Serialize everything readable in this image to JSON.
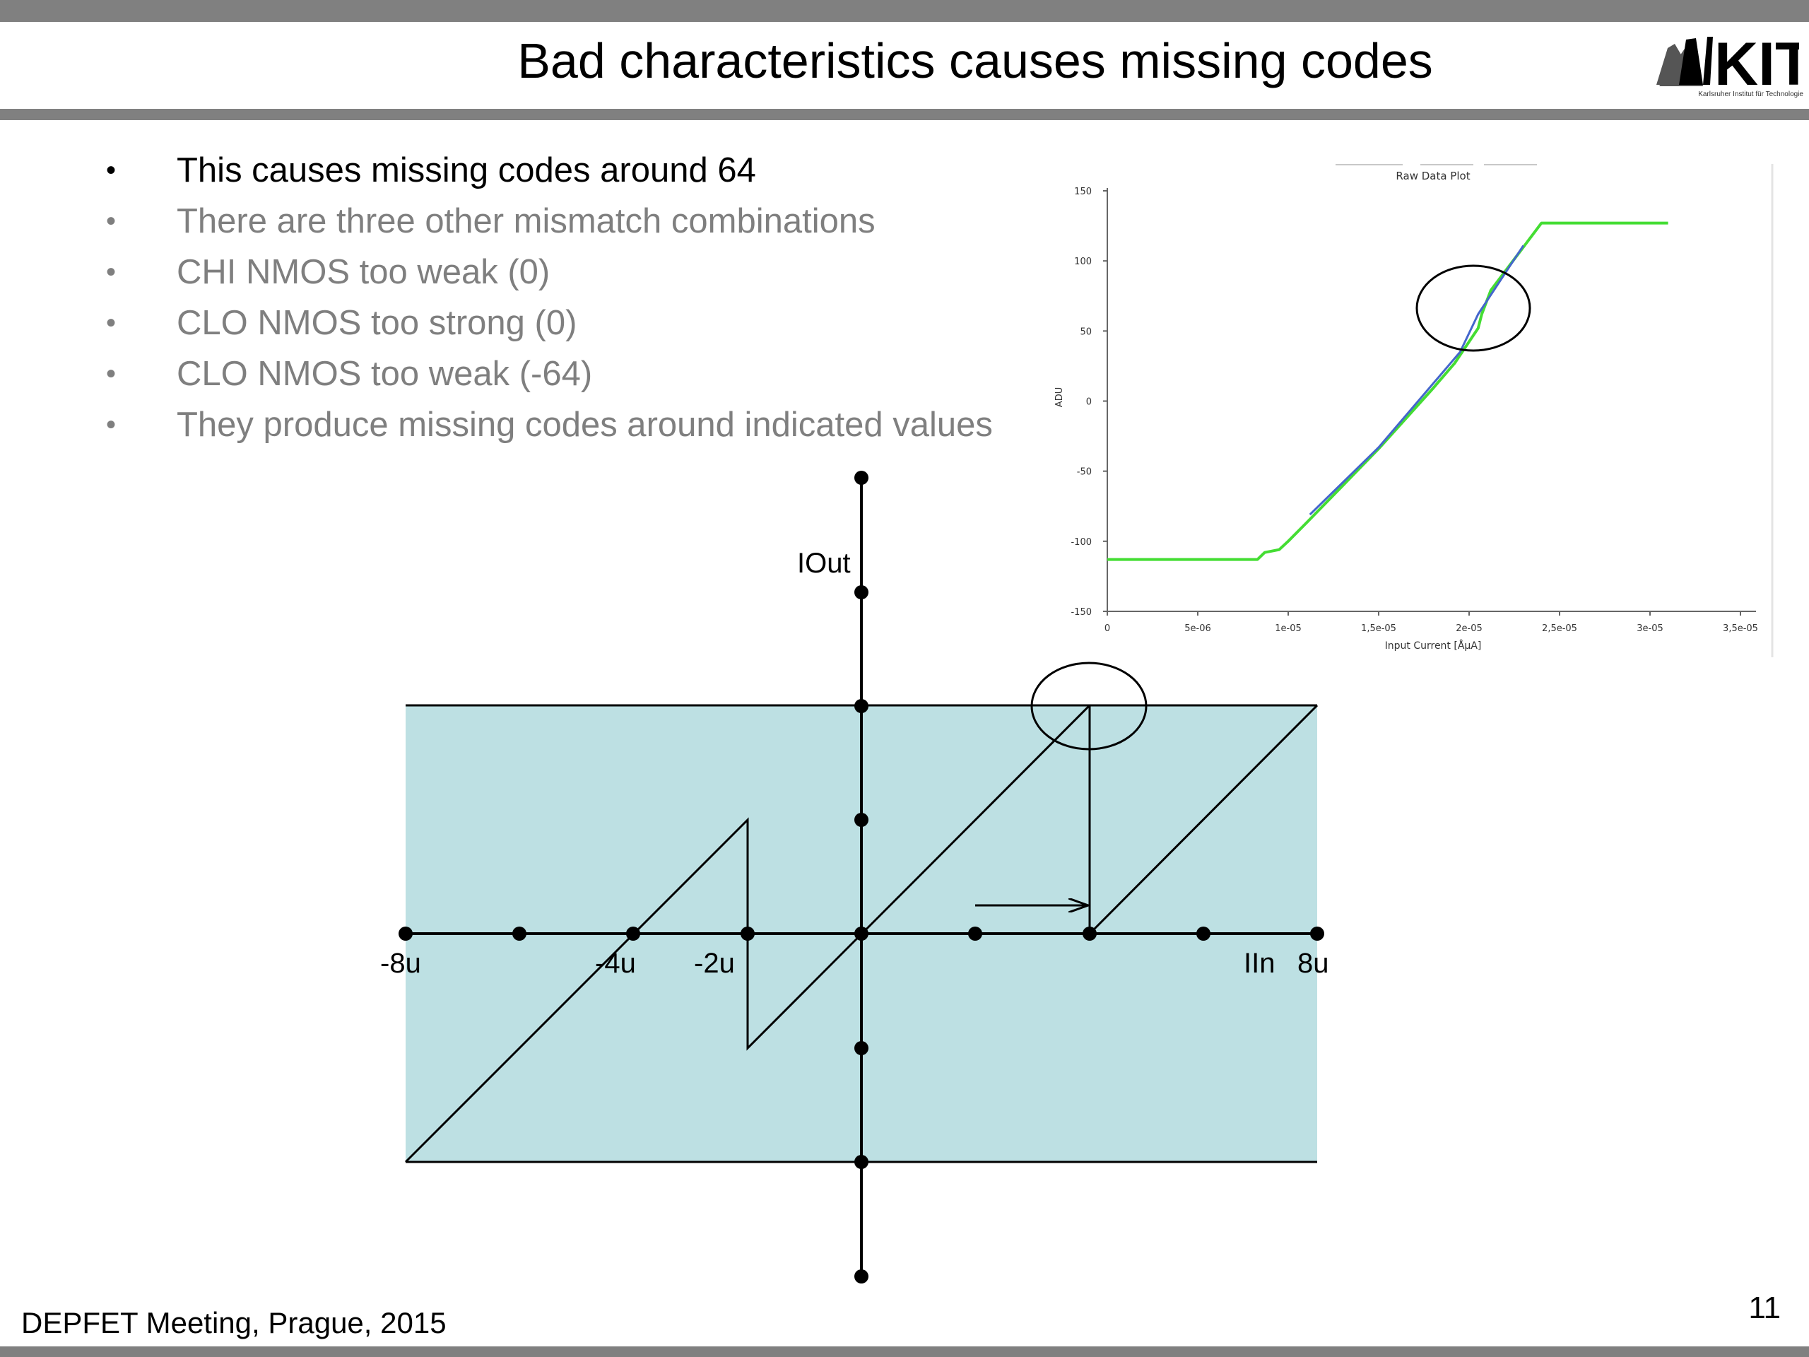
{
  "slide": {
    "title": "Bad characteristics causes missing codes",
    "logo_wordmark": "KIT",
    "logo_subtitle": "Karlsruher Institut für Technologie",
    "bullets": [
      "This causes missing codes around 64",
      "There are three other mismatch combinations",
      "CHI NMOS too weak (0)",
      "CLO NMOS too strong (0)",
      "CLO NMOS too weak (-64)",
      "They produce missing codes around indicated values"
    ],
    "bullet_glyph": "•",
    "footer": "DEPFET Meeting, Prague, 2015",
    "page_number": "11"
  },
  "diagram": {
    "y_axis_label": "IOut",
    "x_axis_label": "IIn",
    "x_tick_labels": [
      "-8u",
      "-4u",
      "-2u",
      "8u"
    ],
    "fill_color": "#bde0e3"
  },
  "chart_data": {
    "type": "line",
    "title": "Raw Data Plot",
    "xlabel": "Input Current [ÅµA]",
    "ylabel": "ADU",
    "xlim": [
      0,
      3.5e-05
    ],
    "ylim": [
      -150,
      150
    ],
    "x_tick_labels": [
      "0",
      "5e-06",
      "1e-05",
      "1,5e-05",
      "2e-05",
      "2,5e-05",
      "3e-05",
      "3,5e-05"
    ],
    "y_tick_labels": [
      "150",
      "100",
      "50",
      "0",
      "-50",
      "-100",
      "-150"
    ],
    "series": [
      {
        "color": "#44dd33",
        "points": [
          [
            0,
            -113
          ],
          [
            8.3e-06,
            -113
          ],
          [
            8.7e-06,
            -108
          ],
          [
            9.5e-06,
            -106
          ],
          [
            1e-05,
            -100
          ],
          [
            1.1e-05,
            -87
          ],
          [
            1.5e-05,
            -34
          ],
          [
            1.8e-05,
            9
          ],
          [
            1.92e-05,
            27
          ],
          [
            2.05e-05,
            52
          ],
          [
            2.07e-05,
            62
          ],
          [
            2.12e-05,
            79
          ],
          [
            2.4e-05,
            127
          ],
          [
            3.1e-05,
            127
          ]
        ]
      },
      {
        "color": "#4466cc",
        "points": [
          [
            1.12e-05,
            -81
          ],
          [
            1.5e-05,
            -33
          ],
          [
            1.95e-05,
            35
          ],
          [
            2.05e-05,
            62
          ],
          [
            2.3e-05,
            111
          ]
        ]
      }
    ]
  }
}
